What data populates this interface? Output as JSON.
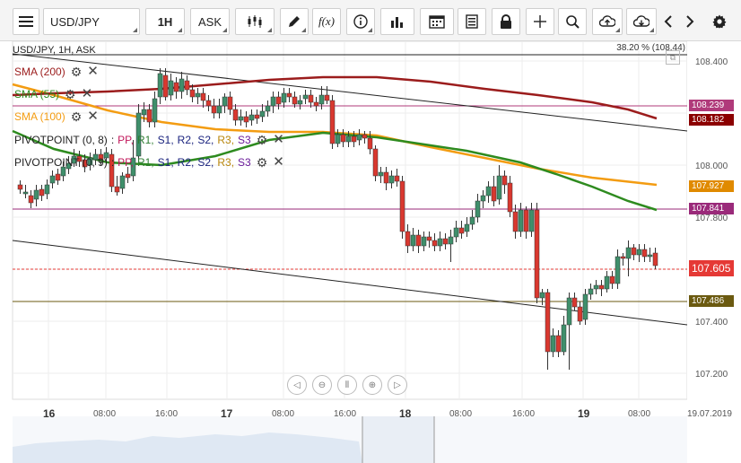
{
  "toolbar": {
    "symbol": "USD/JPY",
    "timeframe": "1H",
    "price_type": "ASK",
    "icons": [
      "menu-icon",
      "candles-icon",
      "pencil-icon",
      "function-icon",
      "info-icon",
      "bars-chart-icon",
      "calendar-icon",
      "list-icon",
      "lock-icon",
      "crosshair-icon",
      "zoom-icon",
      "cloud-upload-icon",
      "cloud-download-icon",
      "arrow-left-icon",
      "arrow-right-icon",
      "gear-icon"
    ],
    "function_label": "f(x)"
  },
  "chart": {
    "header": "USD/JPY, 1H, ASK",
    "fib_label": "38.20 % (108.44)",
    "legend": [
      {
        "label": "SMA (200)",
        "color": "#9b1c1c"
      },
      {
        "label": "SMA (55)",
        "color": "#2e8b1f"
      },
      {
        "label": "SMA (100)",
        "color": "#f39c12"
      }
    ],
    "pivot_rows": [
      {
        "label": "PIVOTPOINT (0, 8)",
        "colon": ":",
        "parts": [
          "PP,",
          "R1,",
          "S1,",
          "R2,",
          "S2,",
          "R3,",
          "S3"
        ]
      },
      {
        "label": "PIVOTPOINT (0, 9)",
        "colon": ":",
        "parts": [
          "PP,",
          "R1,",
          "S1,",
          "R2,",
          "S2,",
          "R3,",
          "S3"
        ]
      }
    ],
    "pivot_colors": [
      "#c2185b",
      "#2e7d32",
      "#1a237e",
      "#1a237e",
      "#1a237e",
      "#b8860b",
      "#6a1b9a"
    ],
    "y_axis": [
      "108.400",
      "108.000",
      "107.800",
      "107.400",
      "107.200"
    ],
    "price_tags": [
      {
        "value": "108.239",
        "color": "#b03a7a"
      },
      {
        "value": "108.182",
        "color": "#8b0000"
      },
      {
        "value": "107.927",
        "color": "#e08a00"
      },
      {
        "value": "107.841",
        "color": "#9a2a7a"
      },
      {
        "value": "107.605",
        "color": "#e53935"
      },
      {
        "value": "107.486",
        "color": "#6b5a10"
      }
    ],
    "x_axis": [
      {
        "label": "16",
        "day": true
      },
      {
        "label": "08:00",
        "day": false
      },
      {
        "label": "16:00",
        "day": false
      },
      {
        "label": "17",
        "day": true
      },
      {
        "label": "08:00",
        "day": false
      },
      {
        "label": "16:00",
        "day": false
      },
      {
        "label": "18",
        "day": true
      },
      {
        "label": "08:00",
        "day": false
      },
      {
        "label": "16:00",
        "day": false
      },
      {
        "label": "19",
        "day": true
      },
      {
        "label": "08:00",
        "day": false
      }
    ],
    "date_label": "19.07.2019",
    "nav_controls": [
      "scroll-left",
      "zoom-out",
      "reset",
      "zoom-in",
      "scroll-right"
    ],
    "colors": {
      "up": "#3f8f6b",
      "down": "#d9382f",
      "sma200": "#9b1c1c",
      "sma55": "#2e8b1f",
      "sma100": "#f39c12"
    }
  }
}
